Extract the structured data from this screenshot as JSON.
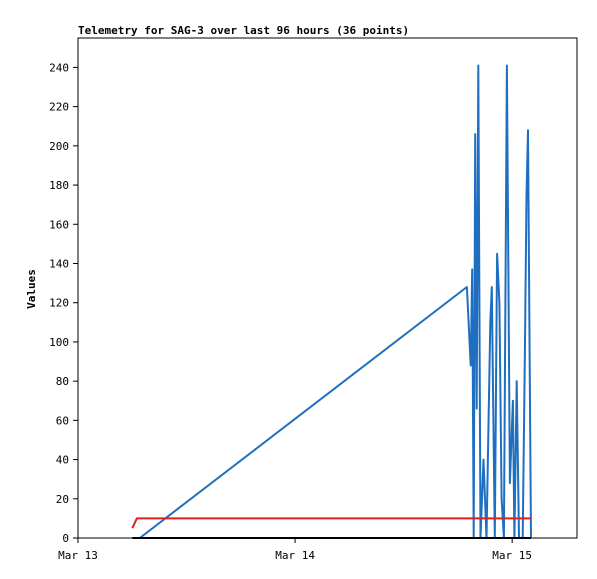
{
  "chart_data": {
    "type": "line",
    "title": "Telemetry for SAG-3 over last 96 hours (36 points)",
    "xlabel": "",
    "ylabel": "Values",
    "ylim": [
      0,
      255
    ],
    "yticks": [
      0,
      20,
      40,
      60,
      80,
      100,
      120,
      140,
      160,
      180,
      200,
      220,
      240
    ],
    "xlim": [
      "Mar 13 00:00",
      "Mar 15 07:10"
    ],
    "xticks": [
      {
        "label": "Mar 13",
        "t": "Mar 13 00:00"
      },
      {
        "label": "Mar 14",
        "t": "Mar 14 00:00"
      },
      {
        "label": "Mar 15",
        "t": "Mar 15 00:00"
      }
    ],
    "legend": "none",
    "grid": false,
    "series": [
      {
        "color": "#1f6fc0",
        "points": [
          {
            "t": "Mar 13 06:50",
            "v": 0
          },
          {
            "t": "Mar 14 19:00",
            "v": 128
          },
          {
            "t": "Mar 14 19:25",
            "v": 88
          },
          {
            "t": "Mar 14 19:35",
            "v": 137
          },
          {
            "t": "Mar 14 19:45",
            "v": 0
          },
          {
            "t": "Mar 14 19:55",
            "v": 206
          },
          {
            "t": "Mar 14 20:05",
            "v": 66
          },
          {
            "t": "Mar 14 20:15",
            "v": 241
          },
          {
            "t": "Mar 14 20:30",
            "v": 0
          },
          {
            "t": "Mar 14 20:50",
            "v": 40
          },
          {
            "t": "Mar 14 21:10",
            "v": 0
          },
          {
            "t": "Mar 14 21:35",
            "v": 110
          },
          {
            "t": "Mar 14 21:45",
            "v": 128
          },
          {
            "t": "Mar 14 22:05",
            "v": 0
          },
          {
            "t": "Mar 14 22:20",
            "v": 145
          },
          {
            "t": "Mar 14 22:35",
            "v": 120
          },
          {
            "t": "Mar 14 22:50",
            "v": 20
          },
          {
            "t": "Mar 14 23:05",
            "v": 0
          },
          {
            "t": "Mar 14 23:25",
            "v": 241
          },
          {
            "t": "Mar 14 23:45",
            "v": 28
          },
          {
            "t": "Mar 15 00:05",
            "v": 70
          },
          {
            "t": "Mar 15 00:15",
            "v": 0
          },
          {
            "t": "Mar 15 00:30",
            "v": 80
          },
          {
            "t": "Mar 15 00:45",
            "v": 0
          },
          {
            "t": "Mar 15 01:10",
            "v": 0
          },
          {
            "t": "Mar 15 01:25",
            "v": 100
          },
          {
            "t": "Mar 15 01:35",
            "v": 175
          },
          {
            "t": "Mar 15 01:45",
            "v": 208
          },
          {
            "t": "Mar 15 01:55",
            "v": 102
          },
          {
            "t": "Mar 15 02:05",
            "v": 0
          }
        ]
      },
      {
        "color": "#e02020",
        "points": [
          {
            "t": "Mar 13 06:00",
            "v": 5
          },
          {
            "t": "Mar 13 06:30",
            "v": 10
          },
          {
            "t": "Mar 15 02:05",
            "v": 10
          }
        ]
      },
      {
        "color": "#000000",
        "points": [
          {
            "t": "Mar 13 06:00",
            "v": 0
          },
          {
            "t": "Mar 15 02:05",
            "v": 0
          }
        ]
      }
    ]
  }
}
